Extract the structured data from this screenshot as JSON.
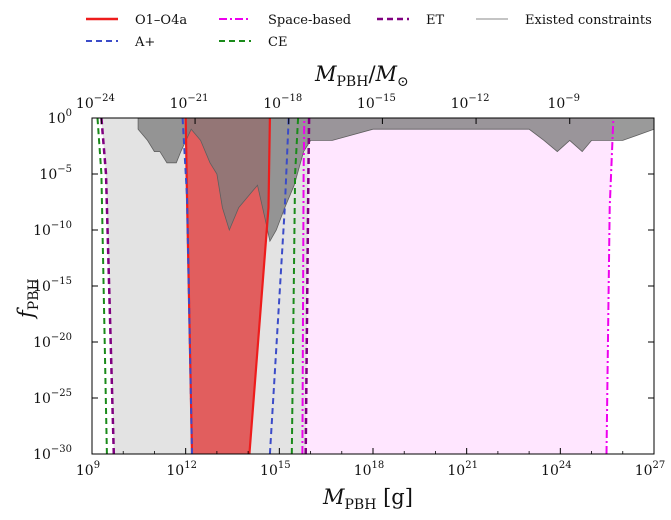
{
  "chart_data": {
    "type": "area",
    "x_scale": "log",
    "y_scale": "log",
    "xlabel": "M_PBH [g]",
    "ylabel": "f_PBH",
    "top_xlabel": "M_PBH/M_⊙",
    "xlim": [
      1000000000.0,
      1e+27
    ],
    "ylim": [
      1e-30,
      1
    ],
    "top_xlim": [
      5e-25,
      5e-07
    ],
    "x_tick_labels": [
      "10^9",
      "10^12",
      "10^15",
      "10^18",
      "10^21",
      "10^24",
      "10^27"
    ],
    "y_tick_labels": [
      "10^-30",
      "10^-25",
      "10^-20",
      "10^-15",
      "10^-10",
      "10^-5",
      "10^0"
    ],
    "top_tick_labels": [
      "10^-24",
      "10^-21",
      "10^-18",
      "10^-15",
      "10^-12",
      "10^-9"
    ],
    "legend": {
      "placement": "top",
      "entries": [
        {
          "label": "O1–O4a",
          "color": "#ee1c1c",
          "style": "solid"
        },
        {
          "label": "A+",
          "color": "#3b4bc8",
          "style": "dashed"
        },
        {
          "label": "Space-based",
          "color": "#ee00ee",
          "style": "dashdot"
        },
        {
          "label": "CE",
          "color": "#1a8a1a",
          "style": "dashed"
        },
        {
          "label": "ET",
          "color": "#800080",
          "style": "dashed"
        },
        {
          "label": "Existed constraints",
          "color": "#888888",
          "style": "thin"
        }
      ]
    },
    "series": [
      {
        "name": "O1–O4a",
        "color": "#ee1c1c",
        "left": [
          [
            1600000000000.0,
            1e-30
          ],
          [
            1100000000000.0,
            1e-07
          ],
          [
            1000000000000.0,
            1
          ]
        ],
        "right": [
          [
            110000000000000.0,
            1e-30
          ],
          [
            450000000000000.0,
            1e-08
          ],
          [
            500000000000000.0,
            1
          ]
        ]
      },
      {
        "name": "A+",
        "color": "#3b4bc8",
        "left": [
          [
            1600000000000.0,
            1e-30
          ],
          [
            1100000000000.0,
            1e-07
          ],
          [
            800000000000.0,
            1
          ]
        ],
        "right": [
          [
            500000000000000.0,
            1e-30
          ],
          [
            1500000000000000.0,
            1e-08
          ],
          [
            2000000000000000.0,
            1
          ]
        ]
      },
      {
        "name": "CE",
        "color": "#1a8a1a",
        "left": [
          [
            3000000000.0,
            1e-30
          ],
          [
            2000000000.0,
            1e-05
          ],
          [
            1500000000.0,
            1
          ]
        ],
        "right": [
          [
            2500000000000000.0,
            1e-30
          ],
          [
            3200000000000000.0,
            1e-05
          ],
          [
            4000000000000000.0,
            1
          ]
        ]
      },
      {
        "name": "ET",
        "color": "#800080",
        "left": [
          [
            5000000000.0,
            1e-30
          ],
          [
            2800000000.0,
            1e-05
          ],
          [
            2000000000.0,
            1
          ]
        ],
        "right": [
          [
            7000000000000000.0,
            1e-30
          ],
          [
            8500000000000000.0,
            1e-05
          ],
          [
            9000000000000000.0,
            1
          ]
        ]
      },
      {
        "name": "Space-based",
        "color": "#ee00ee",
        "left": [
          [
            5500000000000000.0,
            1e-30
          ],
          [
            6000000000000000.0,
            1e-05
          ],
          [
            6300000000000000.0,
            1
          ]
        ],
        "right": [
          [
            3e+25,
            1e-30
          ],
          [
            3.8e+25,
            1e-08
          ],
          [
            5e+25,
            1
          ]
        ]
      },
      {
        "name": "Existed constraints",
        "color": "#888888",
        "outline": [
          [
            30000000000.0,
            1
          ],
          [
            30000000000.0,
            0.1
          ],
          [
            60000000000.0,
            0.01
          ],
          [
            100000000000.0,
            0.001
          ],
          [
            150000000000.0,
            0.001
          ],
          [
            250000000000.0,
            0.0001
          ],
          [
            500000000000.0,
            0.0001
          ],
          [
            700000000000.0,
            0.001
          ],
          [
            1500000000000.0,
            0.1
          ],
          [
            3000000000000.0,
            0.01
          ],
          [
            6000000000000.0,
            0.0001
          ],
          [
            10000000000000.0,
            1e-05
          ],
          [
            15000000000000.0,
            1e-08
          ],
          [
            25000000000000.0,
            1e-10
          ],
          [
            50000000000000.0,
            1e-08
          ],
          [
            100000000000000.0,
            1e-07
          ],
          [
            200000000000000.0,
            1e-06
          ],
          [
            350000000000000.0,
            1e-09
          ],
          [
            500000000000000.0,
            1e-11
          ],
          [
            800000000000000.0,
            1e-10
          ],
          [
            1500000000000000.0,
            1e-08
          ],
          [
            3000000000000000.0,
            1e-06
          ],
          [
            6000000000000000.0,
            0.001
          ],
          [
            1e+16,
            0.01
          ],
          [
            5e+16,
            0.01
          ],
          [
            1e+18,
            0.1
          ],
          [
            1e+22,
            0.1
          ],
          [
            1e+23,
            0.1
          ],
          [
            3e+23,
            0.01
          ],
          [
            8e+23,
            0.001
          ],
          [
            2e+24,
            0.01
          ],
          [
            5e+24,
            0.001
          ],
          [
            1e+25,
            0.01
          ],
          [
            1e+26,
            0.01
          ],
          [
            1e+27,
            0.1
          ],
          [
            1e+27,
            1
          ]
        ]
      }
    ]
  }
}
